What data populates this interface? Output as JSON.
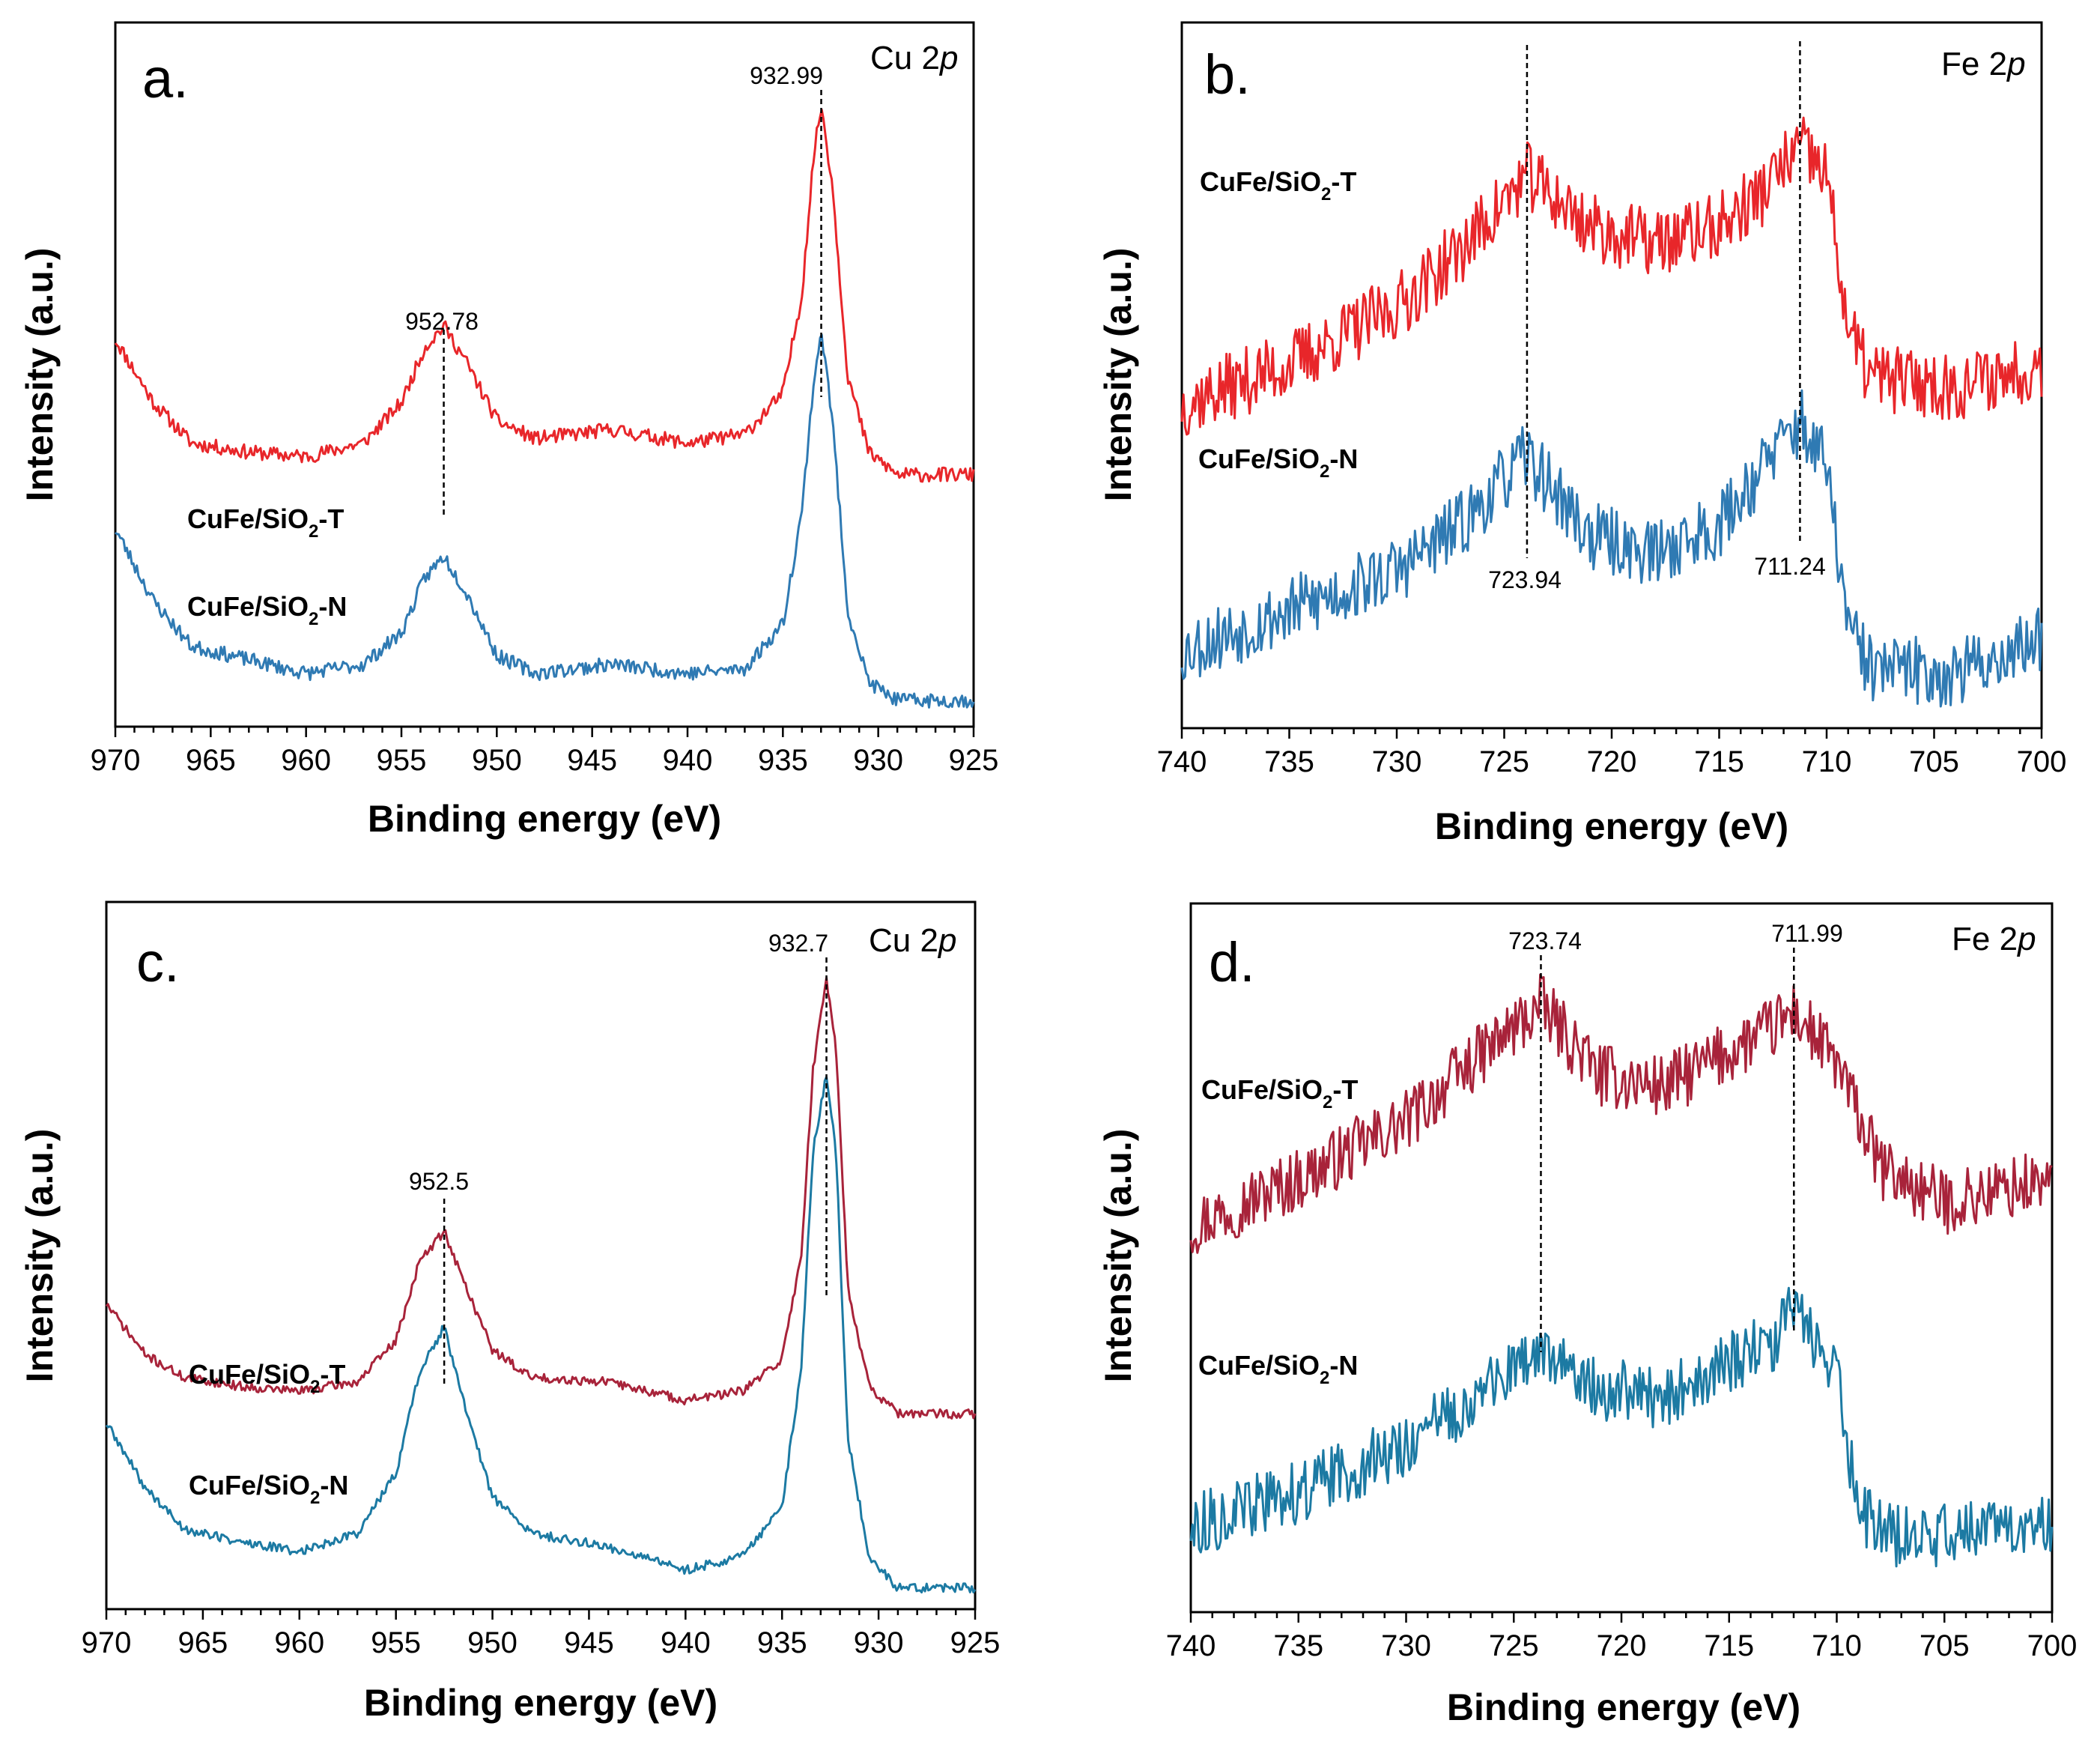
{
  "chart_data": [
    {
      "type": "line",
      "panel": "a.",
      "element_label": "Cu 2p",
      "element_symbol": "Cu",
      "orbital_number": "2",
      "orbital_letter": "p",
      "xlabel": "Binding energy (eV)",
      "ylabel": "Intensity (a.u.)",
      "xlim": [
        970,
        925
      ],
      "xticks": [
        "970",
        "965",
        "960",
        "955",
        "950",
        "945",
        "940",
        "935",
        "930",
        "925"
      ],
      "peaks": [
        {
          "label": "952.78",
          "x": 952.78
        },
        {
          "label": "932.99",
          "x": 932.99
        }
      ],
      "series": [
        {
          "name": "CuFe/SiO2-T",
          "label_main": "CuFe/SiO",
          "label_sub": "2",
          "label_tail": "-T",
          "color": "#e8262a",
          "baseline": 0.5,
          "noise": 0.016,
          "seed": 11,
          "shape": [
            [
              970,
              0.3
            ],
            [
              968,
              0.16
            ],
            [
              966,
              0.07
            ],
            [
              963,
              0.05
            ],
            [
              960,
              0.04
            ],
            [
              957,
              0.07
            ],
            [
              955,
              0.16
            ],
            [
              953.8,
              0.28
            ],
            [
              952.78,
              0.33
            ],
            [
              951.6,
              0.25
            ],
            [
              950,
              0.12
            ],
            [
              948,
              0.08
            ],
            [
              944,
              0.1
            ],
            [
              940,
              0.07
            ],
            [
              937,
              0.09
            ],
            [
              935,
              0.18
            ],
            [
              934,
              0.4
            ],
            [
              933.4,
              0.7
            ],
            [
              932.99,
              0.82
            ],
            [
              932.4,
              0.64
            ],
            [
              931.6,
              0.22
            ],
            [
              930.5,
              0.05
            ],
            [
              929,
              0.0
            ],
            [
              925,
              0.0
            ]
          ]
        },
        {
          "name": "CuFe/SiO2-N",
          "label_main": "CuFe/SiO",
          "label_sub": "2",
          "label_tail": "-N",
          "color": "#2f7ab3",
          "baseline": 0.0,
          "noise": 0.016,
          "seed": 23,
          "shape": [
            [
              970,
              0.38
            ],
            [
              968,
              0.22
            ],
            [
              966,
              0.12
            ],
            [
              963,
              0.09
            ],
            [
              960,
              0.06
            ],
            [
              957,
              0.08
            ],
            [
              955,
              0.15
            ],
            [
              953.8,
              0.27
            ],
            [
              952.78,
              0.32
            ],
            [
              951.6,
              0.24
            ],
            [
              950,
              0.1
            ],
            [
              948,
              0.06
            ],
            [
              944,
              0.08
            ],
            [
              940,
              0.06
            ],
            [
              937,
              0.07
            ],
            [
              935,
              0.17
            ],
            [
              934,
              0.42
            ],
            [
              933.4,
              0.7
            ],
            [
              932.99,
              0.82
            ],
            [
              932.4,
              0.62
            ],
            [
              931.6,
              0.2
            ],
            [
              930.5,
              0.04
            ],
            [
              929,
              0.0
            ],
            [
              925,
              0.0
            ]
          ]
        }
      ]
    },
    {
      "type": "line",
      "panel": "b.",
      "element_label": "Fe 2p",
      "element_symbol": "Fe",
      "orbital_number": "2",
      "orbital_letter": "p",
      "xlabel": "Binding energy (eV)",
      "ylabel": "Intensity (a.u.)",
      "xlim": [
        740,
        700
      ],
      "xticks": [
        "740",
        "735",
        "730",
        "725",
        "720",
        "715",
        "710",
        "705",
        "700"
      ],
      "peaks": [
        {
          "label": "723.94",
          "x": 723.94
        },
        {
          "label": "711.24",
          "x": 711.24
        }
      ],
      "series": [
        {
          "name": "CuFe/SiO2-T",
          "label_main": "CuFe/SiO",
          "label_sub": "2",
          "label_tail": "-T",
          "color": "#e8262a",
          "baseline": 0.46,
          "noise": 0.06,
          "seed": 37,
          "shape": [
            [
              740,
              0.05
            ],
            [
              735,
              0.12
            ],
            [
              730,
              0.22
            ],
            [
              727,
              0.32
            ],
            [
              723.94,
              0.45
            ],
            [
              721,
              0.36
            ],
            [
              718,
              0.33
            ],
            [
              715,
              0.36
            ],
            [
              713,
              0.42
            ],
            [
              711.24,
              0.5
            ],
            [
              710,
              0.45
            ],
            [
              709,
              0.18
            ],
            [
              708,
              0.1
            ],
            [
              704,
              0.08
            ],
            [
              700,
              0.12
            ]
          ]
        },
        {
          "name": "CuFe/SiO2-N",
          "label_main": "CuFe/SiO",
          "label_sub": "2",
          "label_tail": "-N",
          "color": "#2f7ab3",
          "baseline": 0.0,
          "noise": 0.06,
          "seed": 53,
          "shape": [
            [
              740,
              0.08
            ],
            [
              735,
              0.15
            ],
            [
              730,
              0.22
            ],
            [
              727,
              0.3
            ],
            [
              723.94,
              0.42
            ],
            [
              721,
              0.28
            ],
            [
              718,
              0.25
            ],
            [
              715,
              0.3
            ],
            [
              713,
              0.4
            ],
            [
              711.24,
              0.48
            ],
            [
              710,
              0.4
            ],
            [
              709,
              0.12
            ],
            [
              708,
              0.05
            ],
            [
              704,
              0.04
            ],
            [
              700,
              0.1
            ]
          ]
        }
      ]
    },
    {
      "type": "line",
      "panel": "c.",
      "element_label": "Cu 2p",
      "element_symbol": "Cu",
      "orbital_number": "2",
      "orbital_letter": "p",
      "xlabel": "Binding energy (eV)",
      "ylabel": "Intensity (a.u.)",
      "xlim": [
        970,
        925
      ],
      "xticks": [
        "970",
        "965",
        "960",
        "955",
        "950",
        "945",
        "940",
        "935",
        "930",
        "925"
      ],
      "peaks": [
        {
          "label": "952.5",
          "x": 952.5
        },
        {
          "label": "932.7",
          "x": 932.7
        }
      ],
      "series": [
        {
          "name": "CuFe/SiO2-T",
          "label_main": "CuFe/SiO",
          "label_sub": "2",
          "label_tail": "-T",
          "color": "#a8233a",
          "baseline": 0.38,
          "noise": 0.01,
          "seed": 71,
          "shape": [
            [
              970,
              0.24
            ],
            [
              968,
              0.13
            ],
            [
              966,
              0.08
            ],
            [
              963,
              0.06
            ],
            [
              960,
              0.05
            ],
            [
              957,
              0.07
            ],
            [
              955,
              0.16
            ],
            [
              953.8,
              0.33
            ],
            [
              952.5,
              0.4
            ],
            [
              951.6,
              0.3
            ],
            [
              950,
              0.14
            ],
            [
              948,
              0.08
            ],
            [
              944,
              0.07
            ],
            [
              940,
              0.03
            ],
            [
              937,
              0.05
            ],
            [
              935,
              0.12
            ],
            [
              934,
              0.35
            ],
            [
              933.4,
              0.75
            ],
            [
              932.7,
              0.95
            ],
            [
              932.2,
              0.8
            ],
            [
              931.6,
              0.28
            ],
            [
              930.5,
              0.06
            ],
            [
              929,
              0.0
            ],
            [
              925,
              0.0
            ]
          ]
        },
        {
          "name": "CuFe/SiO2-N",
          "label_main": "CuFe/SiO",
          "label_sub": "2",
          "label_tail": "-N",
          "color": "#1c7aa3",
          "baseline": 0.0,
          "noise": 0.01,
          "seed": 89,
          "shape": [
            [
              970,
              0.36
            ],
            [
              968,
              0.22
            ],
            [
              966,
              0.13
            ],
            [
              963,
              0.1
            ],
            [
              960,
              0.08
            ],
            [
              957,
              0.12
            ],
            [
              955,
              0.25
            ],
            [
              953.8,
              0.47
            ],
            [
              952.5,
              0.57
            ],
            [
              951.6,
              0.42
            ],
            [
              950,
              0.2
            ],
            [
              948,
              0.12
            ],
            [
              944,
              0.09
            ],
            [
              940,
              0.04
            ],
            [
              937,
              0.07
            ],
            [
              935,
              0.18
            ],
            [
              934,
              0.48
            ],
            [
              933.4,
              0.95
            ],
            [
              932.7,
              1.12
            ],
            [
              932.2,
              0.95
            ],
            [
              931.6,
              0.33
            ],
            [
              930.5,
              0.07
            ],
            [
              929,
              0.0
            ],
            [
              925,
              0.0
            ]
          ]
        }
      ]
    },
    {
      "type": "line",
      "panel": "d.",
      "element_label": "Fe 2p",
      "element_symbol": "Fe",
      "orbital_number": "2",
      "orbital_letter": "p",
      "xlabel": "Binding energy (eV)",
      "ylabel": "Intensity (a.u.)",
      "xlim": [
        740,
        700
      ],
      "xticks": [
        "740",
        "735",
        "730",
        "725",
        "720",
        "715",
        "710",
        "705",
        "700"
      ],
      "peaks": [
        {
          "label": "723.74",
          "x": 723.74
        },
        {
          "label": "711.99",
          "x": 711.99
        }
      ],
      "series": [
        {
          "name": "CuFe/SiO2-T",
          "label_main": "CuFe/SiO",
          "label_sub": "2",
          "label_tail": "-T",
          "color": "#a8233a",
          "baseline": 0.5,
          "noise": 0.055,
          "seed": 97,
          "shape": [
            [
              740,
              0.1
            ],
            [
              735,
              0.18
            ],
            [
              730,
              0.28
            ],
            [
              727,
              0.38
            ],
            [
              723.74,
              0.48
            ],
            [
              721,
              0.36
            ],
            [
              718,
              0.34
            ],
            [
              715,
              0.4
            ],
            [
              713,
              0.44
            ],
            [
              711.99,
              0.47
            ],
            [
              710,
              0.38
            ],
            [
              708,
              0.2
            ],
            [
              705,
              0.14
            ],
            [
              700,
              0.18
            ]
          ]
        },
        {
          "name": "CuFe/SiO2-N",
          "label_main": "CuFe/SiO",
          "label_sub": "2",
          "label_tail": "-N",
          "color": "#1c7aa3",
          "baseline": 0.0,
          "noise": 0.055,
          "seed": 113,
          "shape": [
            [
              740,
              0.08
            ],
            [
              735,
              0.14
            ],
            [
              730,
              0.22
            ],
            [
              727,
              0.3
            ],
            [
              723.74,
              0.38
            ],
            [
              721,
              0.32
            ],
            [
              718,
              0.3
            ],
            [
              715,
              0.36
            ],
            [
              713,
              0.4
            ],
            [
              711.99,
              0.45
            ],
            [
              710,
              0.36
            ],
            [
              709,
              0.1
            ],
            [
              707,
              0.06
            ],
            [
              700,
              0.09
            ]
          ]
        }
      ]
    }
  ]
}
